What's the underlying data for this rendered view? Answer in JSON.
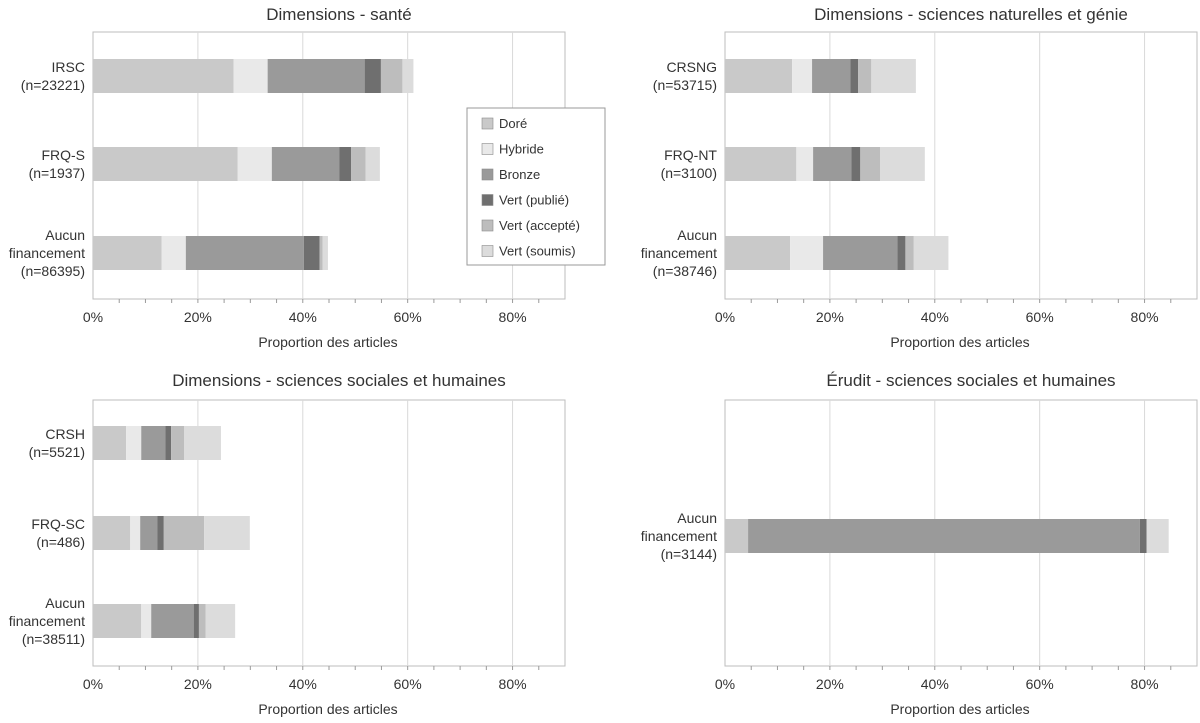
{
  "legend_items": [
    {
      "label": "Doré",
      "color": "#c9c9c9"
    },
    {
      "label": "Hybride",
      "color": "#e9e9e9"
    },
    {
      "label": "Bronze",
      "color": "#9a9a9a"
    },
    {
      "label": "Vert (publié)",
      "color": "#6f6f6f"
    },
    {
      "label": "Vert (accepté)",
      "color": "#bdbdbd"
    },
    {
      "label": "Vert (soumis)",
      "color": "#dcdcdc"
    }
  ],
  "chart_data": [
    {
      "type": "bar",
      "orientation": "horizontal",
      "stacked": true,
      "title": "Dimensions - santé",
      "xlabel": "Proportion des articles",
      "xlim": [
        0,
        90
      ],
      "x_ticks": [
        "0%",
        "20%",
        "40%",
        "60%",
        "80%"
      ],
      "categories": [
        [
          "IRSC",
          "(n=23221)"
        ],
        [
          "FRQ-S",
          "(n=1937)"
        ],
        [
          "Aucun",
          "financement",
          "(n=86395)"
        ]
      ],
      "series": [
        {
          "name": "Doré",
          "values": [
            26.8,
            27.6,
            13.1
          ]
        },
        {
          "name": "Hybride",
          "values": [
            6.5,
            6.5,
            4.6
          ]
        },
        {
          "name": "Bronze",
          "values": [
            18.5,
            12.9,
            22.5
          ]
        },
        {
          "name": "Vert (publié)",
          "values": [
            3.1,
            2.2,
            3.0
          ]
        },
        {
          "name": "Vert (accepté)",
          "values": [
            4.1,
            2.8,
            0.6
          ]
        },
        {
          "name": "Vert (soumis)",
          "values": [
            2.1,
            2.7,
            1.0
          ]
        }
      ],
      "legend": "right"
    },
    {
      "type": "bar",
      "orientation": "horizontal",
      "stacked": true,
      "title": "Dimensions - sciences naturelles et génie",
      "xlabel": "Proportion des articles",
      "xlim": [
        0,
        90
      ],
      "x_ticks": [
        "0%",
        "20%",
        "40%",
        "60%",
        "80%"
      ],
      "categories": [
        [
          "CRSNG",
          "(n=53715)"
        ],
        [
          "FRQ-NT",
          "(n=3100)"
        ],
        [
          "Aucun",
          "financement",
          "(n=38746)"
        ]
      ],
      "series": [
        {
          "name": "Doré",
          "values": [
            12.8,
            13.6,
            12.4
          ]
        },
        {
          "name": "Hybride",
          "values": [
            3.8,
            3.2,
            6.3
          ]
        },
        {
          "name": "Bronze",
          "values": [
            7.3,
            7.3,
            14.2
          ]
        },
        {
          "name": "Vert (publié)",
          "values": [
            1.5,
            1.7,
            1.5
          ]
        },
        {
          "name": "Vert (accepté)",
          "values": [
            2.5,
            3.8,
            1.6
          ]
        },
        {
          "name": "Vert (soumis)",
          "values": [
            8.5,
            8.5,
            6.6
          ]
        }
      ]
    },
    {
      "type": "bar",
      "orientation": "horizontal",
      "stacked": true,
      "title": "Dimensions - sciences sociales et humaines",
      "xlabel": "Proportion des articles",
      "xlim": [
        0,
        90
      ],
      "x_ticks": [
        "0%",
        "20%",
        "40%",
        "60%",
        "80%"
      ],
      "categories": [
        [
          "CRSH",
          "(n=5521)"
        ],
        [
          "FRQ-SC",
          "(n=486)"
        ],
        [
          "Aucun",
          "financement",
          "(n=38511)"
        ]
      ],
      "series": [
        {
          "name": "Doré",
          "values": [
            6.3,
            7.1,
            9.2
          ]
        },
        {
          "name": "Hybride",
          "values": [
            2.9,
            1.9,
            1.9
          ]
        },
        {
          "name": "Bronze",
          "values": [
            4.6,
            3.3,
            8.1
          ]
        },
        {
          "name": "Vert (publié)",
          "values": [
            1.1,
            1.2,
            1.0
          ]
        },
        {
          "name": "Vert (accepté)",
          "values": [
            2.5,
            7.7,
            1.3
          ]
        },
        {
          "name": "Vert (soumis)",
          "values": [
            7.0,
            8.7,
            5.6
          ]
        }
      ]
    },
    {
      "type": "bar",
      "orientation": "horizontal",
      "stacked": true,
      "title": "Érudit - sciences sociales et humaines",
      "xlabel": "Proportion des articles",
      "xlim": [
        0,
        90
      ],
      "x_ticks": [
        "0%",
        "20%",
        "40%",
        "60%",
        "80%"
      ],
      "categories": [
        [
          "Aucun",
          "financement",
          "(n=3144)"
        ]
      ],
      "series": [
        {
          "name": "Doré",
          "values": [
            4.4
          ]
        },
        {
          "name": "Hybride",
          "values": [
            0.0
          ]
        },
        {
          "name": "Bronze",
          "values": [
            74.7
          ]
        },
        {
          "name": "Vert (publié)",
          "values": [
            1.3
          ]
        },
        {
          "name": "Vert (accepté)",
          "values": [
            0.0
          ]
        },
        {
          "name": "Vert (soumis)",
          "values": [
            4.2
          ]
        }
      ]
    }
  ]
}
